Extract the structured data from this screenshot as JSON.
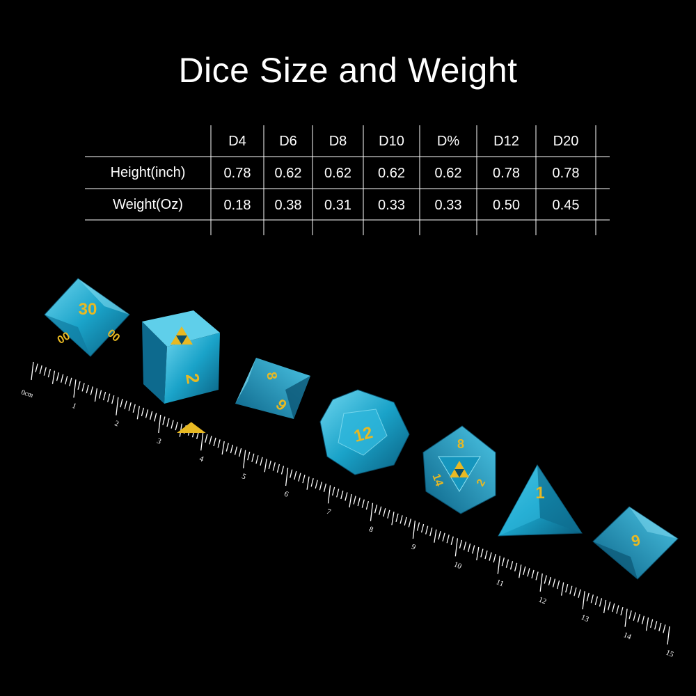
{
  "title": "Dice Size and Weight",
  "table": {
    "columns": [
      "D4",
      "D6",
      "D8",
      "D10",
      "D%",
      "D12",
      "D20"
    ],
    "rows": [
      {
        "label": "Height(inch)",
        "values": [
          "0.78",
          "0.62",
          "0.62",
          "0.62",
          "0.62",
          "0.78",
          "0.78"
        ]
      },
      {
        "label": "Weight(Oz)",
        "values": [
          "0.18",
          "0.38",
          "0.31",
          "0.33",
          "0.33",
          "0.50",
          "0.45"
        ]
      }
    ]
  },
  "ruler": {
    "unit_label": "0cm",
    "numbers": [
      "1",
      "2",
      "3",
      "4",
      "5",
      "6",
      "7",
      "8",
      "9",
      "10",
      "11",
      "12",
      "13",
      "14",
      "15"
    ]
  },
  "dice_faces": {
    "d10_percent": "30",
    "d10_percent_side_left": "00",
    "d10_percent_side_right": "00",
    "d6": "2",
    "d8_top": "8",
    "d8_front": "6",
    "d12": "12",
    "d20_top": "8",
    "d20_left": "14",
    "d20_right": "2",
    "d4": "1",
    "d10": "9"
  },
  "colors": {
    "background": "#000000",
    "dice": "#1aa3c9",
    "dice_dark": "#0e6f92",
    "numerals": "#e8b923",
    "ruler": "#ffffff"
  }
}
